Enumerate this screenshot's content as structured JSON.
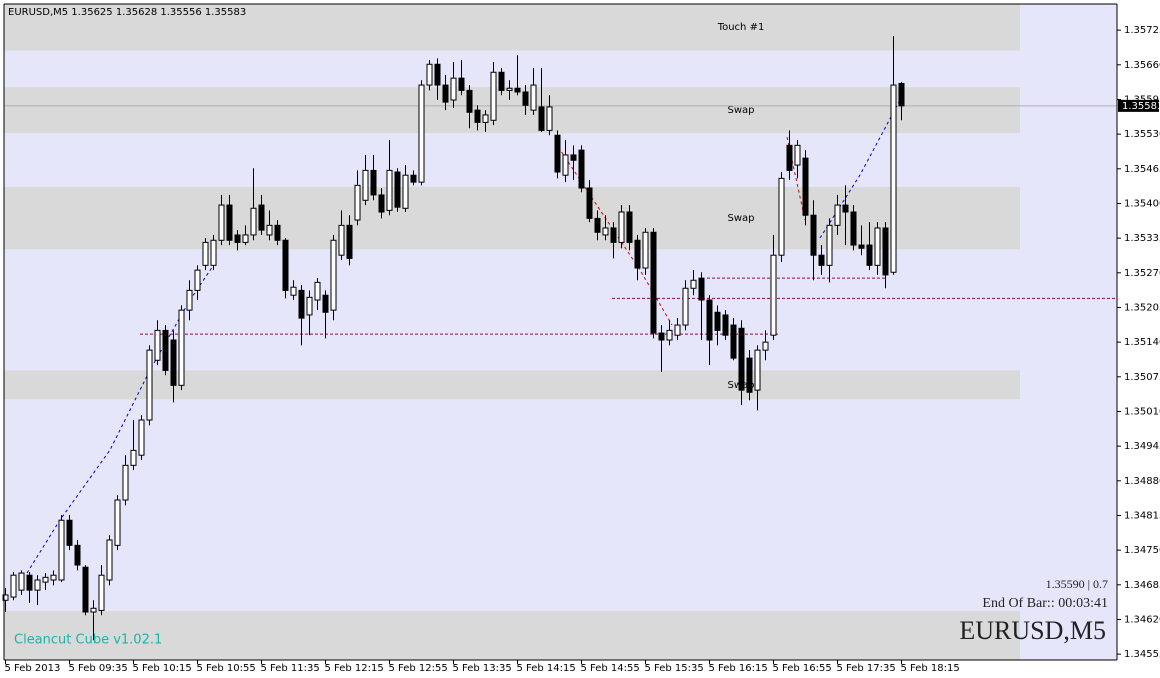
{
  "chart_data": {
    "type": "candlestick",
    "header": "EURUSD,M5  1.35625 1.35628 1.35556 1.35583",
    "watermark": "Cleancut Cube v1.02.1",
    "info_line": "1.35590 | 0.7",
    "end_of_bar": "End Of Bar:: 00:03:41",
    "symbol": "EURUSD,M5",
    "current_price": 1.35583,
    "background": "#e6e6fa",
    "up_color": "#ffffff",
    "down_color": "#000000",
    "zone_color": "#d9d9d9",
    "level_color": "#8b0a50",
    "categories": [
      "5 Feb 2013",
      null,
      null,
      null,
      null,
      null,
      null,
      null,
      "5 Feb 09:35",
      null,
      null,
      null,
      null,
      null,
      null,
      null,
      "5 Feb 10:15",
      null,
      null,
      null,
      null,
      null,
      null,
      null,
      "5 Feb 10:55",
      null,
      null,
      null,
      null,
      null,
      null,
      null,
      "5 Feb 11:35",
      null,
      null,
      null,
      null,
      null,
      null,
      null,
      "5 Feb 12:15",
      null,
      null,
      null,
      null,
      null,
      null,
      null,
      "5 Feb 12:55",
      null,
      null,
      null,
      null,
      null,
      null,
      null,
      "5 Feb 13:35",
      null,
      null,
      null,
      null,
      null,
      null,
      null,
      "5 Feb 14:15",
      null,
      null,
      null,
      null,
      null,
      null,
      null,
      "5 Feb 14:55",
      null,
      null,
      null,
      null,
      null,
      null,
      null,
      "5 Feb 15:35",
      null,
      null,
      null,
      null,
      null,
      null,
      null,
      "5 Feb 16:15",
      null,
      null,
      null,
      null,
      null,
      null,
      null,
      "5 Feb 16:55",
      null,
      null,
      null,
      null,
      null,
      null,
      null,
      "5 Feb 17:35",
      null,
      null,
      null,
      null,
      null,
      null,
      null,
      "5 Feb 18:15"
    ],
    "open": [
      1.34656,
      1.34662,
      1.34675,
      1.34703,
      1.34675,
      1.3469,
      1.34694,
      1.34694,
      1.34806,
      1.34759,
      1.34718,
      1.34634,
      1.34637,
      1.34694,
      1.34759,
      1.34844,
      1.34909,
      1.34928,
      1.34994,
      1.35106,
      1.35162,
      1.35144,
      1.35059,
      1.352,
      1.35237,
      1.35284,
      1.35284,
      1.35331,
      1.35397,
      1.35341,
      1.35327,
      1.35341,
      1.35397,
      1.35341,
      1.35359,
      1.35331,
      1.35228,
      1.35237,
      1.35191,
      1.35219,
      1.35228,
      1.352,
      1.35303,
      1.35359,
      1.35369,
      1.35406,
      1.35462,
      1.35416,
      1.35387,
      1.35459,
      1.35391,
      1.35453,
      1.3544,
      1.35622,
      1.35661,
      1.35622,
      1.35594,
      1.35635,
      1.35612,
      1.35575,
      1.35552,
      1.35556,
      1.35646,
      1.35612,
      1.35616,
      1.35609,
      1.35575,
      1.35581,
      1.35537,
      1.35528,
      1.35453,
      1.35491,
      1.355,
      1.35429,
      1.35372,
      1.35341,
      1.35354,
      1.35327,
      1.35384,
      1.35331,
      1.35279,
      1.35346,
      1.35157,
      1.35144,
      1.35153,
      1.35172,
      1.35241,
      1.3526,
      1.35219,
      1.35196,
      1.35191,
      1.35172,
      1.35166,
      1.3511,
      1.3505,
      1.35125,
      1.35153,
      1.35303,
      1.35509,
      1.35472,
      1.35485,
      1.35378,
      1.35303,
      1.35284,
      1.35359,
      1.35397,
      1.35384,
      1.35322,
      1.35322,
      1.35284,
      1.35354,
      1.35271,
      1.35625
    ],
    "high": [
      1.34679,
      1.34709,
      1.34712,
      1.34709,
      1.34703,
      1.34707,
      1.34712,
      1.34816,
      1.34816,
      1.34769,
      1.34722,
      1.34656,
      1.34722,
      1.34778,
      1.34853,
      1.34928,
      1.34994,
      1.35003,
      1.35134,
      1.35181,
      1.35172,
      1.35162,
      1.35209,
      1.35256,
      1.35284,
      1.35335,
      1.35341,
      1.35416,
      1.35416,
      1.3535,
      1.35359,
      1.35466,
      1.35416,
      1.35387,
      1.35369,
      1.35335,
      1.35256,
      1.35247,
      1.35237,
      1.3526,
      1.35237,
      1.35341,
      1.35387,
      1.35378,
      1.35462,
      1.35491,
      1.35491,
      1.35429,
      1.35519,
      1.35466,
      1.35472,
      1.35462,
      1.35631,
      1.35669,
      1.35672,
      1.35641,
      1.35665,
      1.35669,
      1.35622,
      1.35584,
      1.35575,
      1.35665,
      1.35654,
      1.35631,
      1.35678,
      1.35622,
      1.35654,
      1.35654,
      1.35603,
      1.35537,
      1.35519,
      1.35509,
      1.35509,
      1.35444,
      1.35387,
      1.35378,
      1.35365,
      1.35397,
      1.35397,
      1.35341,
      1.35354,
      1.35354,
      1.35172,
      1.35181,
      1.35185,
      1.35256,
      1.35275,
      1.35271,
      1.35228,
      1.35209,
      1.352,
      1.35185,
      1.35181,
      1.35125,
      1.35134,
      1.35162,
      1.35341,
      1.35459,
      1.35537,
      1.35519,
      1.355,
      1.35406,
      1.35322,
      1.35372,
      1.35416,
      1.35434,
      1.35397,
      1.35359,
      1.35365,
      1.35365,
      1.35365,
      1.35714,
      1.35628
    ],
    "low": [
      1.34634,
      1.34656,
      1.34666,
      1.34651,
      1.34647,
      1.34675,
      1.34684,
      1.3469,
      1.3475,
      1.34712,
      1.34628,
      1.34581,
      1.34628,
      1.34684,
      1.3475,
      1.34834,
      1.349,
      1.34919,
      1.34984,
      1.35097,
      1.35078,
      1.35027,
      1.3505,
      1.35181,
      1.35219,
      1.35275,
      1.35275,
      1.35322,
      1.35322,
      1.35312,
      1.35322,
      1.35331,
      1.35341,
      1.35331,
      1.35322,
      1.35222,
      1.35219,
      1.35134,
      1.35153,
      1.352,
      1.35147,
      1.35181,
      1.35294,
      1.35284,
      1.35359,
      1.35397,
      1.35406,
      1.35372,
      1.35378,
      1.35384,
      1.35384,
      1.35434,
      1.35434,
      1.35612,
      1.35594,
      1.35575,
      1.35579,
      1.35603,
      1.35541,
      1.35537,
      1.35534,
      1.35547,
      1.35603,
      1.35594,
      1.35603,
      1.35566,
      1.35566,
      1.35534,
      1.35528,
      1.35447,
      1.3544,
      1.35444,
      1.35421,
      1.35365,
      1.35331,
      1.35331,
      1.35297,
      1.35316,
      1.35312,
      1.35256,
      1.35266,
      1.35147,
      1.35084,
      1.35134,
      1.35144,
      1.35162,
      1.35228,
      1.35144,
      1.35097,
      1.35134,
      1.35144,
      1.35106,
      1.35022,
      1.35031,
      1.35012,
      1.35106,
      1.35144,
      1.3529,
      1.35444,
      1.35447,
      1.35359,
      1.35256,
      1.35266,
      1.35252,
      1.35341,
      1.35322,
      1.35312,
      1.35303,
      1.35275,
      1.35266,
      1.35241,
      1.35266,
      1.35556
    ],
    "close": [
      1.34666,
      1.34703,
      1.34707,
      1.34675,
      1.34694,
      1.34699,
      1.34703,
      1.34806,
      1.34759,
      1.34722,
      1.34634,
      1.34641,
      1.34703,
      1.34769,
      1.34844,
      1.34909,
      1.34937,
      1.34994,
      1.35125,
      1.35162,
      1.35087,
      1.35059,
      1.352,
      1.35237,
      1.35275,
      1.35327,
      1.35331,
      1.35397,
      1.35331,
      1.35327,
      1.35341,
      1.35391,
      1.3535,
      1.35359,
      1.35331,
      1.35237,
      1.35243,
      1.35185,
      1.35224,
      1.35252,
      1.35196,
      1.35331,
      1.35359,
      1.35297,
      1.35434,
      1.35462,
      1.35416,
      1.35384,
      1.35462,
      1.35393,
      1.35453,
      1.3544,
      1.35622,
      1.35661,
      1.35622,
      1.3559,
      1.35635,
      1.35612,
      1.35571,
      1.35552,
      1.35566,
      1.35646,
      1.35612,
      1.35616,
      1.35609,
      1.35584,
      1.35622,
      1.35537,
      1.35581,
      1.35459,
      1.35491,
      1.35481,
      1.35429,
      1.35372,
      1.35346,
      1.35354,
      1.35327,
      1.35384,
      1.35327,
      1.35279,
      1.35346,
      1.35157,
      1.35144,
      1.35162,
      1.35172,
      1.35241,
      1.35256,
      1.35219,
      1.35144,
      1.35162,
      1.35153,
      1.3511,
      1.3505,
      1.35046,
      1.35125,
      1.3514,
      1.35303,
      1.35447,
      1.35462,
      1.35509,
      1.35378,
      1.35303,
      1.35284,
      1.35359,
      1.35397,
      1.35384,
      1.35322,
      1.35316,
      1.35284,
      1.35354,
      1.35266,
      1.35622,
      1.35583
    ],
    "zones": [
      {
        "top": 1.35774,
        "bottom": 1.35687,
        "label": "Touch #1"
      },
      {
        "top": 1.35618,
        "bottom": 1.35532,
        "label": "Swap"
      },
      {
        "top": 1.35431,
        "bottom": 1.35314,
        "label": "Swap"
      },
      {
        "top": 1.35087,
        "bottom": 1.35033,
        "label": "Swap"
      },
      {
        "top": 1.34636,
        "bottom": 1.34544
      }
    ],
    "levels": [
      1.3526,
      1.35222,
      1.35155
    ],
    "ylim": [
      1.34544,
      1.35774
    ],
    "yticks": [
      1.35725,
      {
        "value": 1.3566,
        "label": "1.35660"
      },
      1.35595,
      {
        "value": 1.3553,
        "label": "1.35530"
      },
      1.35465,
      {
        "value": 1.354,
        "label": "1.35400"
      },
      1.35335,
      {
        "value": 1.3527,
        "label": "1.35270"
      },
      1.35205,
      {
        "value": 1.3514,
        "label": "1.35140"
      },
      1.35075,
      {
        "value": 1.3501,
        "label": "1.35010"
      },
      1.34945,
      {
        "value": 1.3488,
        "label": "1.34880"
      },
      1.34815,
      {
        "value": 1.3475,
        "label": "1.34750"
      },
      1.34685,
      {
        "value": 1.3462,
        "label": "1.34620"
      },
      1.34555
    ]
  }
}
